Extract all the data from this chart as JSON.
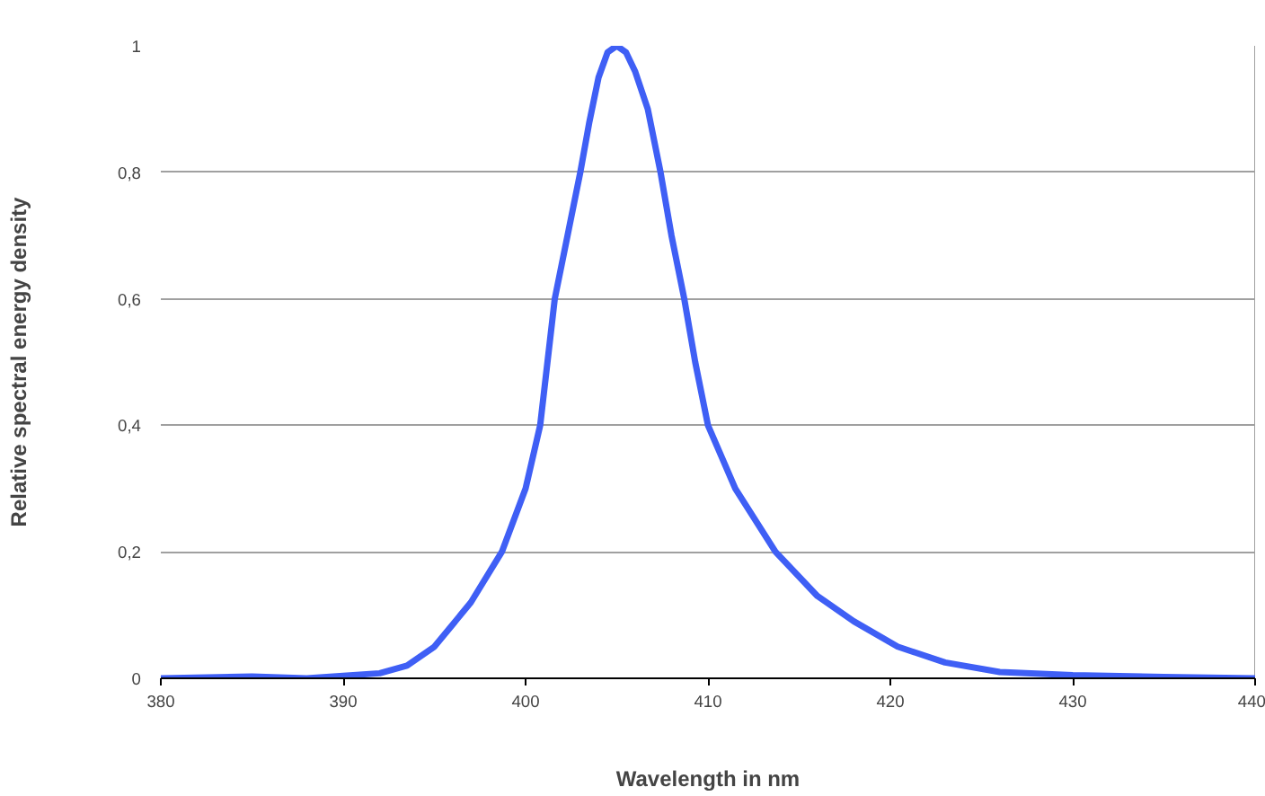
{
  "chart_data": {
    "type": "line",
    "xlabel": "Wavelength in nm",
    "ylabel": "Relative spectral energy density",
    "x": [
      380,
      385,
      388,
      390,
      392,
      393.5,
      395,
      397,
      398.7,
      400,
      400.8,
      401.2,
      401.6,
      402.3,
      403,
      403.5,
      404,
      404.5,
      405,
      405.5,
      406,
      406.7,
      407.4,
      408,
      408.7,
      409.3,
      410,
      411.5,
      413.7,
      416,
      418,
      420.4,
      423,
      426,
      430,
      435,
      440
    ],
    "series": [
      {
        "color": "#3f5ff5",
        "values": [
          0,
          0.003,
          0,
          0.004,
          0.008,
          0.02,
          0.05,
          0.12,
          0.2,
          0.3,
          0.4,
          0.5,
          0.6,
          0.7,
          0.8,
          0.88,
          0.95,
          0.99,
          1,
          0.99,
          0.96,
          0.9,
          0.8,
          0.7,
          0.6,
          0.5,
          0.4,
          0.3,
          0.2,
          0.13,
          0.09,
          0.05,
          0.025,
          0.01,
          0.005,
          0.002,
          0
        ]
      }
    ],
    "xlim": [
      380,
      440
    ],
    "ylim": [
      0,
      1
    ],
    "xticks": [
      380,
      390,
      400,
      410,
      420,
      430,
      440
    ],
    "yticks": [
      0,
      {
        "value": 0.2,
        "label": "0,2"
      },
      {
        "value": 0.4,
        "label": "0,4"
      },
      {
        "value": 0.6,
        "label": "0,6"
      },
      {
        "value": 0.8,
        "label": "0,8"
      },
      1
    ],
    "grid": "y",
    "marker": "none",
    "line_style": "solid"
  }
}
